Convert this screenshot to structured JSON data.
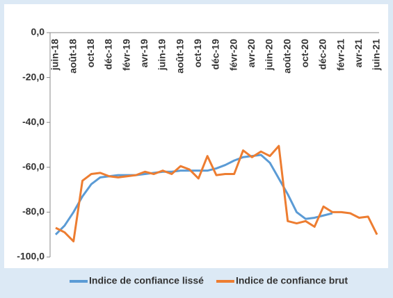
{
  "chart_data": {
    "type": "line",
    "categories": [
      "juin-18",
      null,
      "août-18",
      null,
      "oct-18",
      null,
      "déc-18",
      null,
      "févr-19",
      null,
      "avr-19",
      null,
      "juin-19",
      null,
      "août-19",
      null,
      "oct-19",
      null,
      "déc-19",
      null,
      "févr-20",
      null,
      "avr-20",
      null,
      "juin-20",
      null,
      "août-20",
      null,
      "oct-20",
      null,
      "déc-20",
      null,
      "févr-21",
      null,
      "avr-21",
      null,
      "juin-21"
    ],
    "series": [
      {
        "name": "Indice de confiance lissé",
        "color": "#5b9bd5",
        "values": [
          -90,
          -86,
          -80,
          -73,
          -67.5,
          -64.5,
          -64,
          -63.5,
          -63.5,
          -63.5,
          -63,
          -62.5,
          -62,
          -62,
          -61.5,
          -61.5,
          -61.5,
          -61.5,
          -60.5,
          -59,
          -57,
          -55.5,
          -55,
          -54.5,
          -58,
          -65,
          -72,
          -80,
          -83,
          -82.5,
          -81.5,
          -80.5,
          null,
          null,
          null,
          null,
          null
        ]
      },
      {
        "name": "Indice de confiance brut",
        "color": "#ed7d31",
        "values": [
          -87,
          -89,
          -93,
          -66,
          -63,
          -62.5,
          -64,
          -64.5,
          -64,
          -63.5,
          -62,
          -63,
          -61.5,
          -63,
          -59.5,
          -61,
          -65,
          -55,
          -63.5,
          -63,
          -63,
          -52.5,
          -55.5,
          -53,
          -55,
          -50.5,
          -84,
          -85,
          -84,
          -86.5,
          -77.5,
          -80,
          -80,
          -80.5,
          -82.5,
          -82,
          -90
        ]
      }
    ],
    "ylim": [
      -100,
      0
    ],
    "yticks": [
      {
        "value": 0,
        "label": "0,0"
      },
      {
        "value": -20,
        "label": "-20,0"
      },
      {
        "value": -40,
        "label": "-40,0"
      },
      {
        "value": -60,
        "label": "-60,0"
      },
      {
        "value": -80,
        "label": "-80,0"
      },
      {
        "value": -100,
        "label": "-100,0"
      }
    ],
    "legend": "bottom"
  }
}
